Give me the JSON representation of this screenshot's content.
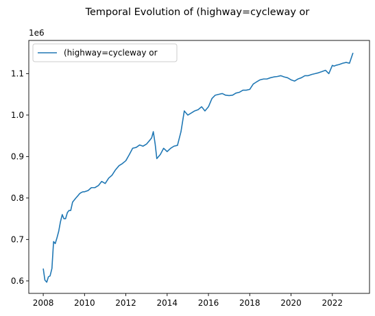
{
  "chart_data": {
    "type": "line",
    "title": "Temporal Evolution of (highway=cycleway or",
    "xlabel": "",
    "ylabel": "",
    "y_offset_label": "1e6",
    "xlim": [
      2007.3,
      2023.8
    ],
    "ylim": [
      0.57,
      1.18
    ],
    "x_ticks": [
      2008,
      2010,
      2012,
      2014,
      2016,
      2018,
      2020,
      2022
    ],
    "x_tick_labels": [
      "2008",
      "2010",
      "2012",
      "2014",
      "2016",
      "2018",
      "2020",
      "2022"
    ],
    "y_ticks": [
      0.6,
      0.7,
      0.8,
      0.9,
      1.0,
      1.1
    ],
    "y_tick_labels": [
      "0.6",
      "0.7",
      "0.8",
      "0.9",
      "1.0",
      "1.1"
    ],
    "grid": false,
    "legend": "top-left",
    "colors": {
      "series": "#1f77b4",
      "axes": "#000000"
    },
    "series": [
      {
        "name": "(highway=cycleway or",
        "x": [
          2008.0,
          2008.08,
          2008.17,
          2008.25,
          2008.33,
          2008.42,
          2008.5,
          2008.58,
          2008.67,
          2008.75,
          2008.83,
          2008.92,
          2009.0,
          2009.08,
          2009.17,
          2009.25,
          2009.33,
          2009.42,
          2009.5,
          2009.58,
          2009.67,
          2009.75,
          2009.83,
          2009.92,
          2010.0,
          2010.17,
          2010.33,
          2010.5,
          2010.67,
          2010.83,
          2011.0,
          2011.17,
          2011.33,
          2011.5,
          2011.67,
          2011.83,
          2012.0,
          2012.17,
          2012.33,
          2012.5,
          2012.67,
          2012.83,
          2013.0,
          2013.17,
          2013.25,
          2013.33,
          2013.42,
          2013.5,
          2013.67,
          2013.83,
          2014.0,
          2014.17,
          2014.33,
          2014.5,
          2014.67,
          2014.75,
          2014.83,
          2015.0,
          2015.17,
          2015.33,
          2015.5,
          2015.67,
          2015.75,
          2015.83,
          2016.0,
          2016.17,
          2016.33,
          2016.5,
          2016.67,
          2016.83,
          2017.0,
          2017.17,
          2017.33,
          2017.5,
          2017.67,
          2017.83,
          2018.0,
          2018.17,
          2018.33,
          2018.5,
          2018.67,
          2018.83,
          2019.0,
          2019.17,
          2019.33,
          2019.5,
          2019.67,
          2019.83,
          2020.0,
          2020.17,
          2020.33,
          2020.5,
          2020.67,
          2020.83,
          2021.0,
          2021.17,
          2021.33,
          2021.5,
          2021.67,
          2021.83,
          2022.0,
          2022.08,
          2022.17,
          2022.33,
          2022.5,
          2022.67,
          2022.83,
          2023.0
        ],
        "y": [
          0.63,
          0.602,
          0.597,
          0.61,
          0.612,
          0.63,
          0.695,
          0.69,
          0.705,
          0.72,
          0.742,
          0.76,
          0.75,
          0.75,
          0.765,
          0.77,
          0.77,
          0.79,
          0.795,
          0.8,
          0.805,
          0.81,
          0.813,
          0.815,
          0.815,
          0.818,
          0.825,
          0.825,
          0.83,
          0.84,
          0.835,
          0.848,
          0.855,
          0.868,
          0.878,
          0.883,
          0.89,
          0.905,
          0.92,
          0.922,
          0.928,
          0.925,
          0.93,
          0.94,
          0.945,
          0.96,
          0.93,
          0.895,
          0.905,
          0.92,
          0.912,
          0.92,
          0.925,
          0.927,
          0.96,
          0.985,
          1.01,
          1.0,
          1.005,
          1.01,
          1.013,
          1.02,
          1.015,
          1.01,
          1.02,
          1.04,
          1.048,
          1.05,
          1.052,
          1.048,
          1.047,
          1.048,
          1.053,
          1.055,
          1.06,
          1.06,
          1.062,
          1.075,
          1.08,
          1.085,
          1.087,
          1.087,
          1.09,
          1.092,
          1.093,
          1.095,
          1.092,
          1.09,
          1.085,
          1.082,
          1.087,
          1.09,
          1.095,
          1.095,
          1.098,
          1.1,
          1.102,
          1.105,
          1.108,
          1.1,
          1.12,
          1.118,
          1.12,
          1.122,
          1.125,
          1.127,
          1.125,
          1.15
        ]
      }
    ]
  }
}
